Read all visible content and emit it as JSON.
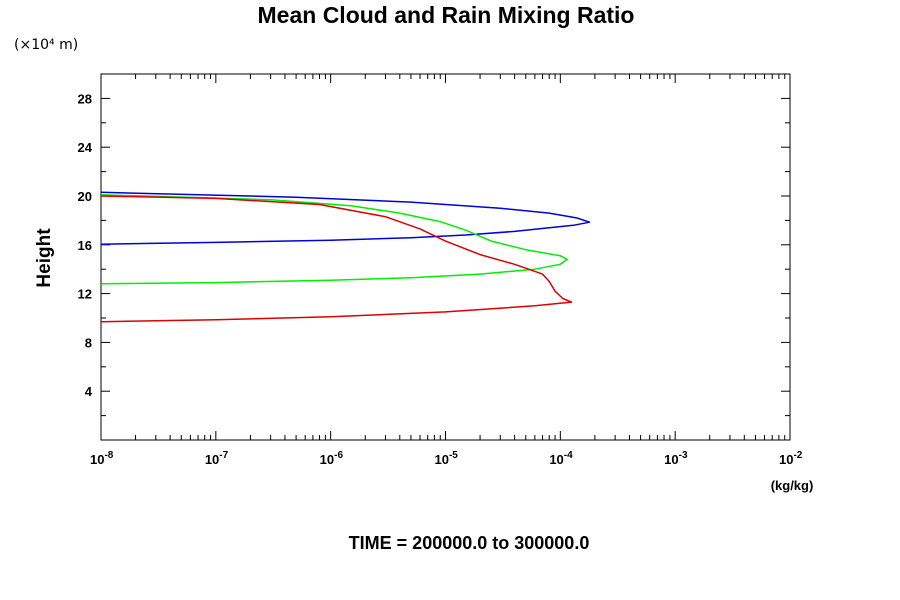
{
  "chart_data": {
    "type": "line",
    "title": "Mean Cloud and Rain Mixing Ratio",
    "y_scale_note": "(×10⁴ m)",
    "ylabel": "Height",
    "xlabel": "(kg/kg)",
    "footer": "TIME = 200000.0 to 300000.0",
    "x_scale": "log",
    "xlim": [
      1e-08,
      0.01
    ],
    "ylim": [
      0,
      30
    ],
    "x_ticks": [
      {
        "value": 1e-08,
        "base": "10",
        "exp": "-8"
      },
      {
        "value": 1e-07,
        "base": "10",
        "exp": "-7"
      },
      {
        "value": 1e-06,
        "base": "10",
        "exp": "-6"
      },
      {
        "value": 1e-05,
        "base": "10",
        "exp": "-5"
      },
      {
        "value": 0.0001,
        "base": "10",
        "exp": "-4"
      },
      {
        "value": 0.001,
        "base": "10",
        "exp": "-3"
      },
      {
        "value": 0.01,
        "base": "10",
        "exp": "-2"
      }
    ],
    "y_ticks": [
      4,
      8,
      12,
      16,
      20,
      24,
      28
    ],
    "grid": false,
    "series": [
      {
        "color": "#0000dd",
        "points": [
          [
            1e-08,
            16.05
          ],
          [
            1e-07,
            16.2
          ],
          [
            1e-06,
            16.38
          ],
          [
            5e-06,
            16.58
          ],
          [
            1.5e-05,
            16.8
          ],
          [
            4e-05,
            17.1
          ],
          [
            8e-05,
            17.4
          ],
          [
            0.00013,
            17.6
          ],
          [
            0.00018,
            17.85
          ],
          [
            0.00014,
            18.2
          ],
          [
            8e-05,
            18.6
          ],
          [
            3e-05,
            19.0
          ],
          [
            5e-06,
            19.5
          ],
          [
            5e-07,
            19.9
          ],
          [
            1e-08,
            20.3
          ]
        ]
      },
      {
        "color": "#00ee00",
        "points": [
          [
            1e-08,
            12.8
          ],
          [
            1e-07,
            12.9
          ],
          [
            1e-06,
            13.1
          ],
          [
            5e-06,
            13.3
          ],
          [
            2e-05,
            13.6
          ],
          [
            6e-05,
            14.0
          ],
          [
            0.0001,
            14.4
          ],
          [
            0.000115,
            14.8
          ],
          [
            0.0001,
            15.1
          ],
          [
            5e-05,
            15.6
          ],
          [
            2.5e-05,
            16.3
          ],
          [
            1.5e-05,
            17.2
          ],
          [
            9e-06,
            17.9
          ],
          [
            4e-06,
            18.6
          ],
          [
            1.5e-06,
            19.2
          ],
          [
            3e-07,
            19.7
          ],
          [
            1e-08,
            20.1
          ]
        ]
      },
      {
        "color": "#dd0000",
        "points": [
          [
            1e-08,
            9.7
          ],
          [
            1e-07,
            9.85
          ],
          [
            1e-06,
            10.1
          ],
          [
            1e-05,
            10.5
          ],
          [
            6e-05,
            11.0
          ],
          [
            0.000125,
            11.3
          ],
          [
            0.000105,
            11.6
          ],
          [
            9e-05,
            12.2
          ],
          [
            8e-05,
            13.0
          ],
          [
            7e-05,
            13.6
          ],
          [
            4e-05,
            14.4
          ],
          [
            2e-05,
            15.2
          ],
          [
            1e-05,
            16.3
          ],
          [
            6e-06,
            17.3
          ],
          [
            3e-06,
            18.3
          ],
          [
            8e-07,
            19.3
          ],
          [
            1e-07,
            19.8
          ],
          [
            1e-08,
            20.0
          ]
        ]
      }
    ]
  }
}
